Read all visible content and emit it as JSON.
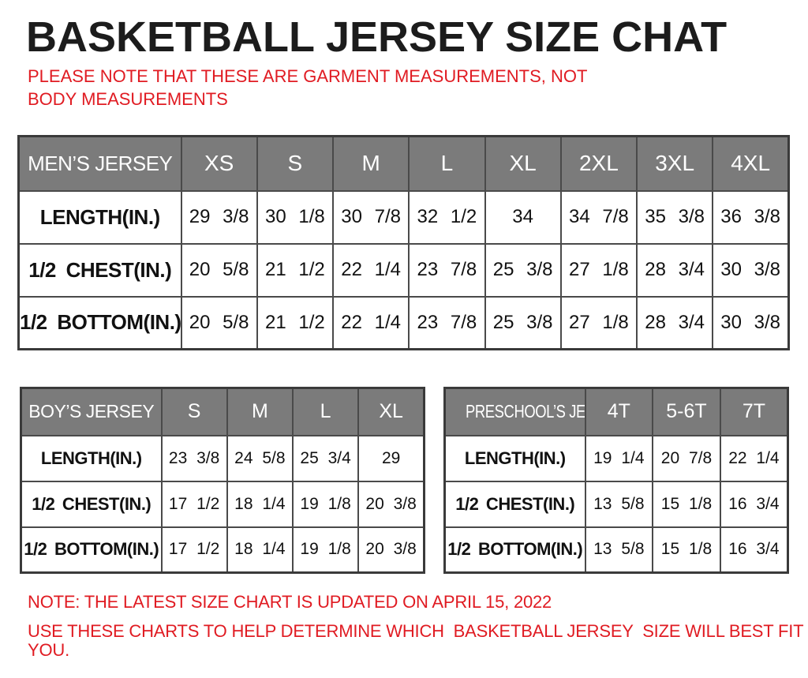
{
  "page": {
    "title": "BASKETBALL JERSEY SIZE CHAT",
    "note": "PLEASE NOTE THAT THESE ARE GARMENT MEASUREMENTS, NOT BODY MEASUREMENTS",
    "footer_note_1": "NOTE: THE LATEST SIZE CHART IS UPDATED ON APRIL 15, 2022",
    "footer_note_2": "USE THESE CHARTS TO HELP DETERMINE WHICH  BASKETBALL JERSEY  SIZE WILL BEST FIT YOU."
  },
  "colors": {
    "accent_red": "#e01b22",
    "header_gray": "#7b7b7b",
    "border_dark": "#3a3a3a",
    "text_black": "#1c1c1c"
  },
  "tables": {
    "mens": {
      "name": "MEN’S JERSEY",
      "sizes": [
        "XS",
        "S",
        "M",
        "L",
        "XL",
        "2XL",
        "3XL",
        "4XL"
      ],
      "rows": [
        {
          "label": "LENGTH(IN.)",
          "values": [
            "29 3/8",
            "30 1/8",
            "30 7/8",
            "32 1/2",
            "34",
            "34 7/8",
            "35 3/8",
            "36 3/8"
          ]
        },
        {
          "label": "1/2 CHEST(IN.)",
          "values": [
            "20 5/8",
            "21 1/2",
            "22 1/4",
            "23 7/8",
            "25 3/8",
            "27 1/8",
            "28 3/4",
            "30 3/8"
          ]
        },
        {
          "label": "1/2 BOTTOM(IN.)",
          "values": [
            "20 5/8",
            "21 1/2",
            "22 1/4",
            "23 7/8",
            "25 3/8",
            "27 1/8",
            "28 3/4",
            "30 3/8"
          ]
        }
      ]
    },
    "boys": {
      "name": "BOY’S JERSEY",
      "sizes": [
        "S",
        "M",
        "L",
        "XL"
      ],
      "rows": [
        {
          "label": "LENGTH(IN.)",
          "values": [
            "23 3/8",
            "24 5/8",
            "25 3/4",
            "29"
          ]
        },
        {
          "label": "1/2 CHEST(IN.)",
          "values": [
            "17 1/2",
            "18 1/4",
            "19 1/8",
            "20 3/8"
          ]
        },
        {
          "label": "1/2 BOTTOM(IN.)",
          "values": [
            "17 1/2",
            "18 1/4",
            "19 1/8",
            "20 3/8"
          ]
        }
      ]
    },
    "preschool": {
      "name": "PRESCHOOL’S JERSEY",
      "sizes": [
        "4T",
        "5-6T",
        "7T"
      ],
      "rows": [
        {
          "label": "LENGTH(IN.)",
          "values": [
            "19 1/4",
            "20 7/8",
            "22 1/4"
          ]
        },
        {
          "label": "1/2 CHEST(IN.)",
          "values": [
            "13 5/8",
            "15 1/8",
            "16 3/4"
          ]
        },
        {
          "label": "1/2 BOTTOM(IN.)",
          "values": [
            "13 5/8",
            "15 1/8",
            "16 3/4"
          ]
        }
      ]
    }
  }
}
